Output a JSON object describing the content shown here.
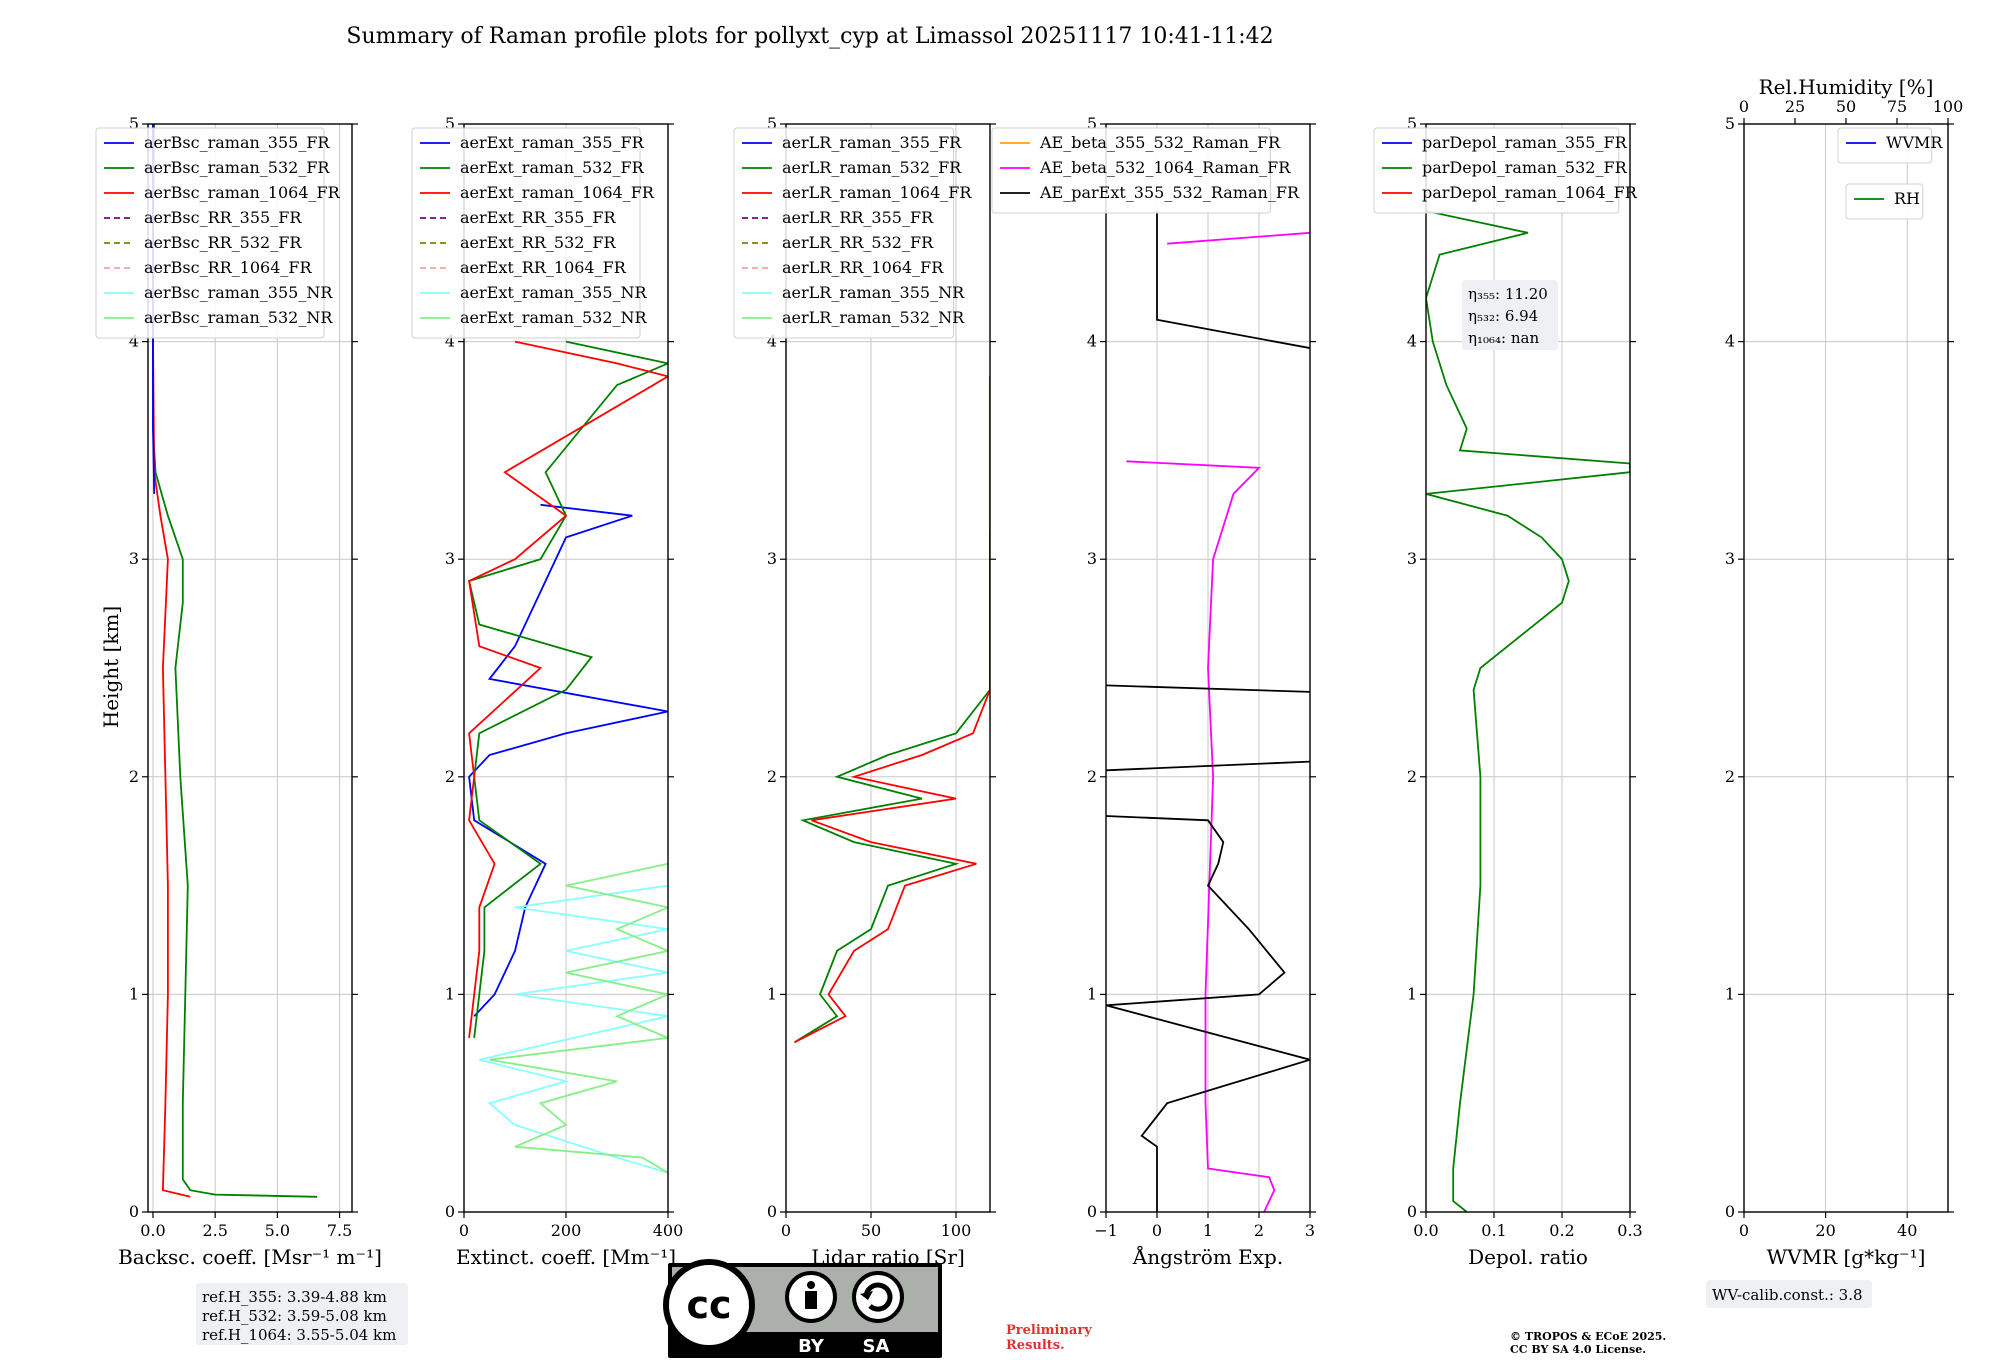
{
  "figure": {
    "title": "Summary of Raman profile plots for pollyxt_cyp at Limassol 20251117 10:41-11:42",
    "ylabel": "Height [km]",
    "ref_heights": [
      "ref.H_355: 3.39-4.88 km",
      "ref.H_532: 3.59-5.08 km",
      "ref.H_1064: 3.55-5.04 km"
    ],
    "license_badge": {
      "by": "BY",
      "sa": "SA",
      "cc": "cc"
    },
    "preliminary": [
      "Preliminary",
      "Results."
    ],
    "copyright": [
      "© TROPOS & ECoE 2025.",
      "CC BY SA 4.0 License."
    ],
    "wv_calib": "WV-calib.const.: 3.8",
    "eta_labels": [
      "η₃₅₅: 11.20",
      "η₅₃₂: 6.94",
      "η₁₀₆₄: nan"
    ],
    "colors": {
      "blue": "#0000ff",
      "green": "#008000",
      "red": "#ff0000",
      "purple": "#800080",
      "olive": "#808000",
      "salmon": "#f4a0a0",
      "cyan": "#88ffff",
      "lightgreen": "#88ee88",
      "orange": "#ffa500",
      "magenta": "#ff00ff",
      "black": "#000000"
    }
  },
  "chart_data": [
    {
      "type": "line",
      "name": "backscatter",
      "xlabel": "Backsc. coeff. [Msr⁻¹ m⁻¹]",
      "xlim": [
        -0.2,
        8
      ],
      "xticks": [
        0,
        2.5,
        5,
        7.5
      ],
      "xtick_labels": [
        "0.0",
        "2.5",
        "5.0",
        "7.5"
      ],
      "ylim": [
        0,
        5
      ],
      "yticks": [
        0,
        1,
        2,
        3,
        4,
        5
      ],
      "legend": [
        "aerBsc_raman_355_FR",
        "aerBsc_raman_532_FR",
        "aerBsc_raman_1064_FR",
        "aerBsc_RR_355_FR",
        "aerBsc_RR_532_FR",
        "aerBsc_RR_1064_FR",
        "aerBsc_raman_355_NR",
        "aerBsc_raman_532_NR"
      ],
      "legend_styles": [
        "blue",
        "green",
        "red",
        "purple-dash",
        "olive-dash",
        "salmon-dash",
        "cyan",
        "lightgreen"
      ],
      "series": [
        {
          "name": "aerBsc_raman_532_FR",
          "color": "green",
          "y": [
            0.07,
            0.08,
            0.1,
            0.15,
            0.3,
            0.5,
            1.0,
            1.5,
            2.0,
            2.5,
            2.8,
            3.0,
            3.2,
            3.4,
            3.6,
            4.0,
            4.5,
            5.0
          ],
          "x": [
            6.6,
            2.5,
            1.5,
            1.2,
            1.2,
            1.2,
            1.3,
            1.4,
            1.1,
            0.9,
            1.2,
            1.2,
            0.6,
            0.1,
            0.0,
            0.0,
            0.0,
            0.05
          ]
        },
        {
          "name": "aerBsc_raman_1064_FR",
          "color": "red",
          "y": [
            0.07,
            0.1,
            0.5,
            1.0,
            1.5,
            2.0,
            2.5,
            3.0,
            3.2,
            3.4,
            4.0,
            5.0
          ],
          "x": [
            1.5,
            0.4,
            0.5,
            0.6,
            0.6,
            0.5,
            0.4,
            0.6,
            0.3,
            0.05,
            0.0,
            0.0
          ]
        },
        {
          "name": "aerBsc_raman_355_FR",
          "color": "blue",
          "y": [
            3.3,
            3.6,
            4.0,
            4.5,
            5.0
          ],
          "x": [
            0.05,
            0.0,
            0.0,
            0.0,
            0.0
          ]
        }
      ]
    },
    {
      "type": "line",
      "name": "extinction",
      "xlabel": "Extinct. coeff. [Mm⁻¹]",
      "xlim": [
        0,
        400
      ],
      "xticks": [
        0,
        200,
        400
      ],
      "xtick_labels": [
        "0",
        "200",
        "400"
      ],
      "ylim": [
        0,
        5
      ],
      "yticks": [
        0,
        1,
        2,
        3,
        4,
        5
      ],
      "legend": [
        "aerExt_raman_355_FR",
        "aerExt_raman_532_FR",
        "aerExt_raman_1064_FR",
        "aerExt_RR_355_FR",
        "aerExt_RR_532_FR",
        "aerExt_RR_1064_FR",
        "aerExt_raman_355_NR",
        "aerExt_raman_532_NR"
      ],
      "legend_styles": [
        "blue",
        "green",
        "red",
        "purple-dash",
        "olive-dash",
        "salmon-dash",
        "cyan",
        "lightgreen"
      ],
      "series": [
        {
          "name": "aerExt_raman_355_FR",
          "color": "blue",
          "y": [
            0.9,
            1.0,
            1.2,
            1.4,
            1.6,
            1.8,
            2.0,
            2.1,
            2.2,
            2.3,
            2.45,
            2.6,
            3.1,
            3.2,
            3.25
          ],
          "x": [
            20,
            60,
            100,
            120,
            160,
            20,
            10,
            50,
            200,
            400,
            50,
            100,
            200,
            330,
            150
          ]
        },
        {
          "name": "aerExt_raman_532_FR",
          "color": "green",
          "y": [
            0.8,
            1.0,
            1.2,
            1.4,
            1.6,
            1.8,
            2.0,
            2.2,
            2.4,
            2.55,
            2.7,
            2.9,
            3.0,
            3.2,
            3.4,
            3.8,
            3.9,
            4.0
          ],
          "x": [
            20,
            30,
            40,
            40,
            150,
            30,
            20,
            30,
            200,
            250,
            30,
            10,
            150,
            200,
            160,
            300,
            400,
            200
          ]
        },
        {
          "name": "aerExt_raman_1064_FR",
          "color": "red",
          "y": [
            0.8,
            1.0,
            1.2,
            1.4,
            1.6,
            1.8,
            2.0,
            2.2,
            2.5,
            2.6,
            2.9,
            3.0,
            3.2,
            3.4,
            3.84,
            3.9,
            4.0
          ],
          "x": [
            10,
            20,
            30,
            30,
            60,
            10,
            20,
            10,
            150,
            30,
            10,
            100,
            200,
            80,
            400,
            300,
            100
          ]
        },
        {
          "name": "aerExt_raman_355_NR",
          "color": "cyan",
          "y": [
            0.18,
            0.25,
            0.4,
            0.5,
            0.6,
            0.7,
            0.9,
            1.0,
            1.1,
            1.2,
            1.3,
            1.4,
            1.5,
            1.6
          ],
          "x": [
            400,
            300,
            100,
            50,
            200,
            30,
            400,
            100,
            400,
            200,
            400,
            100,
            400,
            400
          ]
        },
        {
          "name": "aerExt_raman_532_NR",
          "color": "lightgreen",
          "y": [
            0.18,
            0.25,
            0.3,
            0.4,
            0.5,
            0.6,
            0.7,
            0.8,
            0.9,
            1.0,
            1.1,
            1.2,
            1.3,
            1.4,
            1.5,
            1.6
          ],
          "x": [
            400,
            350,
            100,
            200,
            150,
            300,
            50,
            400,
            300,
            400,
            200,
            400,
            300,
            400,
            200,
            400
          ]
        }
      ]
    },
    {
      "type": "line",
      "name": "lidar_ratio",
      "xlabel": "Lidar ratio [Sr]",
      "xlim": [
        0,
        120
      ],
      "xticks": [
        0,
        50,
        100
      ],
      "xtick_labels": [
        "0",
        "50",
        "100"
      ],
      "ylim": [
        0,
        5
      ],
      "yticks": [
        0,
        1,
        2,
        3,
        4,
        5
      ],
      "legend": [
        "aerLR_raman_355_FR",
        "aerLR_raman_532_FR",
        "aerLR_raman_1064_FR",
        "aerLR_RR_355_FR",
        "aerLR_RR_532_FR",
        "aerLR_RR_1064_FR",
        "aerLR_raman_355_NR",
        "aerLR_raman_532_NR"
      ],
      "legend_styles": [
        "blue",
        "green",
        "red",
        "purple-dash",
        "olive-dash",
        "salmon-dash",
        "cyan",
        "lightgreen"
      ],
      "series": [
        {
          "name": "aerLR_raman_532_FR",
          "color": "green",
          "y": [
            0.78,
            0.9,
            1.0,
            1.2,
            1.3,
            1.5,
            1.6,
            1.7,
            1.8,
            1.9,
            2.0,
            2.1,
            2.2,
            2.4,
            2.7,
            2.95,
            3.0,
            3.12
          ],
          "x": [
            5,
            30,
            20,
            30,
            50,
            60,
            100,
            40,
            10,
            80,
            30,
            60,
            100,
            120,
            120,
            120,
            120,
            120
          ]
        },
        {
          "name": "aerLR_raman_1064_FR",
          "color": "red",
          "y": [
            0.78,
            0.9,
            1.0,
            1.2,
            1.3,
            1.5,
            1.6,
            1.7,
            1.8,
            1.9,
            2.0,
            2.1,
            2.2,
            2.4,
            2.7,
            2.95,
            3.2,
            3.4,
            3.6,
            3.84
          ],
          "x": [
            5,
            35,
            25,
            40,
            60,
            70,
            112,
            50,
            15,
            100,
            40,
            80,
            110,
            120,
            120,
            120,
            120,
            120,
            120,
            120
          ]
        }
      ]
    },
    {
      "type": "line",
      "name": "angstrom",
      "xlabel": "Ångström Exp.",
      "xlim": [
        -1,
        3
      ],
      "xticks": [
        -1,
        0,
        1,
        2,
        3
      ],
      "xtick_labels": [
        "−1",
        "0",
        "1",
        "2",
        "3"
      ],
      "ylim": [
        0,
        5
      ],
      "yticks": [
        0,
        1,
        2,
        3,
        4,
        5
      ],
      "legend": [
        "AE_beta_355_532_Raman_FR",
        "AE_beta_532_1064_Raman_FR",
        "AE_parExt_355_532_Raman_FR"
      ],
      "legend_styles": [
        "orange",
        "magenta",
        "black"
      ],
      "series": [
        {
          "name": "AE_beta_532_1064_Raman_FR",
          "color": "magenta",
          "y": [
            0.0,
            0.1,
            0.16,
            0.2,
            0.5,
            1.0,
            2.0,
            2.5,
            3.0,
            3.3,
            3.42,
            3.45
          ],
          "x": [
            2.1,
            2.3,
            2.2,
            1.0,
            0.95,
            0.95,
            1.1,
            1.0,
            1.1,
            1.5,
            2.0,
            -0.6
          ]
        },
        {
          "name": "AE_parExt_355_532_Raman_FR",
          "color": "black",
          "y": [
            0.0,
            0.3,
            0.35,
            0.5,
            0.7,
            0.95,
            1.0,
            1.1,
            1.3,
            1.5,
            1.6,
            1.7,
            1.8,
            1.82
          ],
          "x": [
            0.0,
            0.0,
            -0.3,
            0.2,
            3.0,
            -1.0,
            2.0,
            2.5,
            1.8,
            1.0,
            1.2,
            1.3,
            1.0,
            -1.0
          ]
        },
        {
          "name": "AE_parExt_355_532_Raman_FR_b",
          "color": "black",
          "y": [
            2.03,
            2.07
          ],
          "x": [
            -1.0,
            3.0
          ]
        },
        {
          "name": "AE_parExt_355_532_Raman_FR_c",
          "color": "black",
          "y": [
            2.42,
            2.39
          ],
          "x": [
            -1.0,
            3.0
          ]
        },
        {
          "name": "AE_parExt_355_532_Raman_FR_d",
          "color": "black",
          "y": [
            3.97,
            4.1,
            4.5,
            4.6
          ],
          "x": [
            3.0,
            0.0,
            0.0,
            0.0
          ]
        },
        {
          "name": "AE_beta_532_1064_Raman_FR_top",
          "color": "magenta",
          "y": [
            4.45,
            4.5
          ],
          "x": [
            0.2,
            3.0
          ]
        }
      ]
    },
    {
      "type": "line",
      "name": "depolarization",
      "xlabel": "Depol. ratio",
      "xlim": [
        0,
        0.3
      ],
      "xticks": [
        0,
        0.1,
        0.2,
        0.3
      ],
      "xtick_labels": [
        "0.0",
        "0.1",
        "0.2",
        "0.3"
      ],
      "ylim": [
        0,
        5
      ],
      "yticks": [
        0,
        1,
        2,
        3,
        4,
        5
      ],
      "legend": [
        "parDepol_raman_355_FR",
        "parDepol_raman_532_FR",
        "parDepol_raman_1064_FR"
      ],
      "legend_styles": [
        "blue",
        "green",
        "red"
      ],
      "series": [
        {
          "name": "parDepol_raman_532_FR",
          "color": "green",
          "y": [
            0.0,
            0.05,
            0.2,
            0.5,
            1.0,
            1.5,
            2.0,
            2.4,
            2.5,
            2.8,
            2.9,
            3.0,
            3.1,
            3.2,
            3.3,
            3.4,
            3.44,
            3.5,
            3.6,
            3.8,
            4.0,
            4.2,
            4.4,
            4.5,
            4.6
          ],
          "x": [
            0.06,
            0.04,
            0.04,
            0.05,
            0.07,
            0.08,
            0.08,
            0.07,
            0.08,
            0.2,
            0.21,
            0.2,
            0.17,
            0.12,
            0.0,
            0.3,
            0.3,
            0.05,
            0.06,
            0.03,
            0.01,
            0.0,
            0.02,
            0.15,
            0.0
          ]
        }
      ]
    },
    {
      "type": "line",
      "name": "water_vapor",
      "xlabel": "WVMR [g*kg⁻¹]",
      "xlim": [
        0,
        50
      ],
      "xticks": [
        0,
        20,
        40
      ],
      "xtick_labels": [
        "0",
        "20",
        "40"
      ],
      "ylim": [
        0,
        5
      ],
      "yticks": [
        0,
        1,
        2,
        3,
        4,
        5
      ],
      "top_xlabel": "Rel.Humidity [%]",
      "top_xticks": [
        0,
        25,
        50,
        75,
        100
      ],
      "top_xtick_labels": [
        "0",
        "25",
        "50",
        "75",
        "100"
      ],
      "legend": [
        "WVMR"
      ],
      "legend_styles": [
        "blue"
      ],
      "legend2": [
        "RH"
      ],
      "legend2_styles": [
        "green"
      ],
      "series": []
    }
  ]
}
